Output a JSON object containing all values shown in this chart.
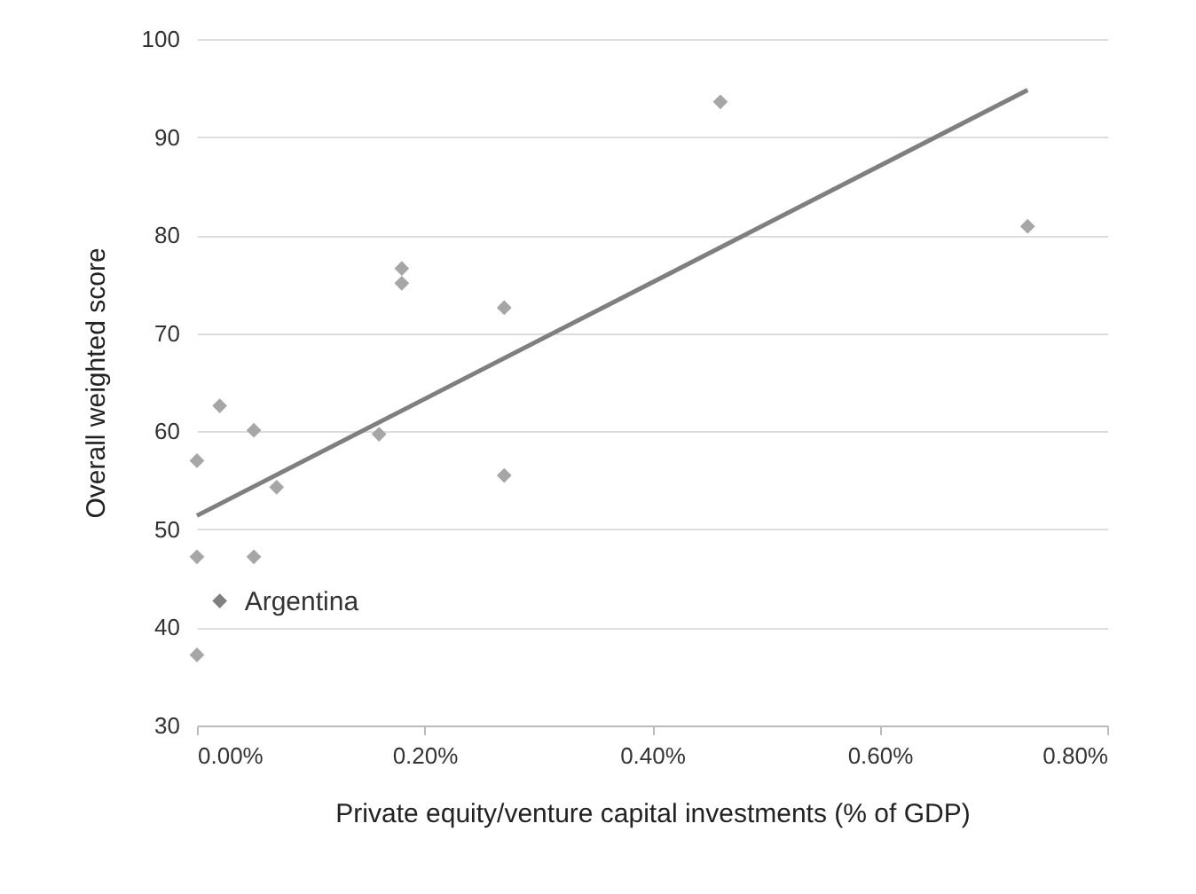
{
  "chart_data": {
    "type": "scatter",
    "xlabel": "Private equity/venture capital investments (% of GDP)",
    "ylabel": "Overall weighted score",
    "series": [
      {
        "marker": "diamond",
        "x": [
          0,
          0.02,
          0.05,
          0.07,
          0,
          0.05,
          0.02,
          0,
          0.16,
          0.27,
          0.27,
          0.18,
          0.18,
          0.46,
          0.73
        ],
        "values": [
          57.0,
          62.6,
          60.1,
          54.3,
          47.2,
          47.2,
          42.7,
          37.2,
          59.7,
          55.5,
          72.6,
          76.6,
          75.1,
          93.6,
          80.9
        ],
        "colors": [
          "#a6a6a6",
          "#a6a6a6",
          "#a6a6a6",
          "#a6a6a6",
          "#a6a6a6",
          "#a6a6a6",
          "#808080",
          "#a6a6a6",
          "#a6a6a6",
          "#a6a6a6",
          "#a6a6a6",
          "#a6a6a6",
          "#a6a6a6",
          "#a6a6a6",
          "#a6a6a6"
        ]
      },
      {
        "type": "line",
        "color": "#7f7f7f",
        "x": [
          0,
          0.73
        ],
        "values": [
          51.4,
          94.8
        ]
      }
    ],
    "annotations": [
      {
        "text": "Argentina",
        "x": 0.02,
        "y": 42.7
      }
    ],
    "xlim": [
      0,
      0.8
    ],
    "xticks": [
      {
        "value": 0,
        "label": "0.00%"
      },
      {
        "value": 0.2,
        "label": "0.20%"
      },
      {
        "value": 0.4,
        "label": "0.40%"
      },
      {
        "value": 0.6,
        "label": "0.60%"
      },
      {
        "value": 0.8,
        "label": "0.80%"
      }
    ],
    "ylim": [
      30,
      100
    ],
    "yticks": [
      30,
      40,
      50,
      60,
      70,
      80,
      90,
      100
    ],
    "grid": "y",
    "line_style": "solid"
  }
}
